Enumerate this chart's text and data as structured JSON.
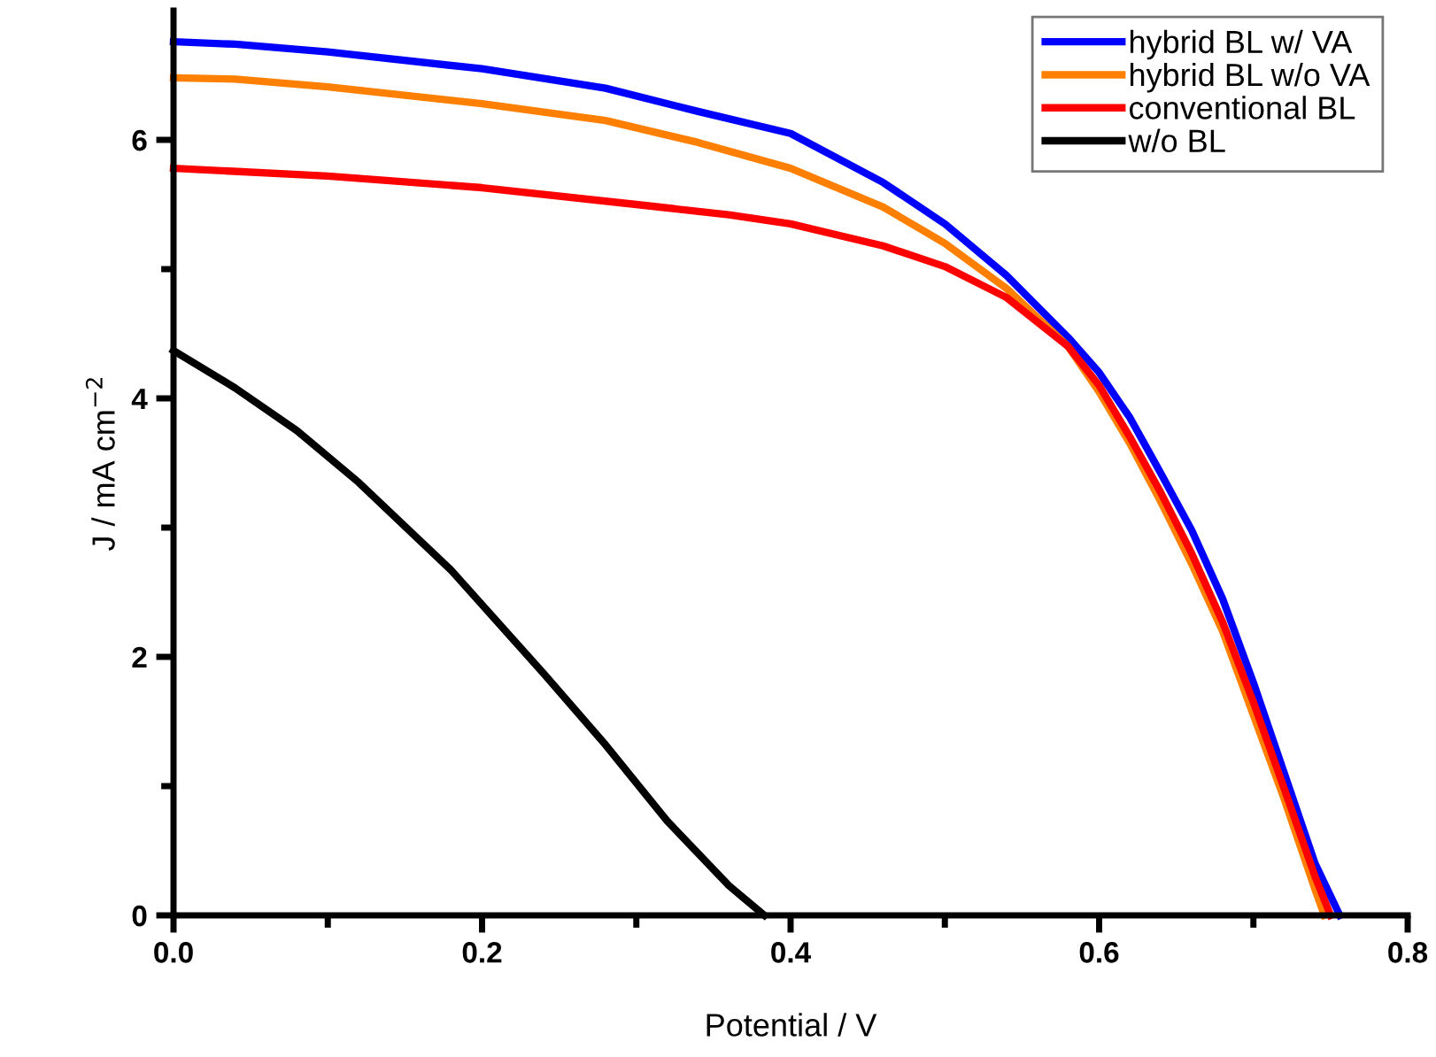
{
  "chart_data": {
    "type": "line",
    "xlabel": "Potential / V",
    "ylabel": "J / mA cm$^{−2}$",
    "xlim": [
      0,
      0.8
    ],
    "ylim": [
      0,
      7
    ],
    "xticks": [
      {
        "value": 0,
        "label": "0.0"
      },
      {
        "value": 0.1,
        "label": null
      },
      0.2,
      {
        "value": 0.3,
        "label": null
      },
      0.4,
      {
        "value": 0.5,
        "label": null
      },
      0.6,
      {
        "value": 0.7,
        "label": null
      },
      0.8
    ],
    "yticks": [
      0,
      {
        "value": 1,
        "label": null
      },
      2,
      {
        "value": 3,
        "label": null
      },
      4,
      {
        "value": 5,
        "label": null
      },
      6
    ],
    "grid": false,
    "legend": "top right",
    "marker": "none",
    "line_style": "solid",
    "series": [
      {
        "name": "hybrid BL w/ VA",
        "color": "#0000ff",
        "x": [
          0,
          0.04,
          0.1,
          0.2,
          0.28,
          0.34,
          0.4,
          0.46,
          0.5,
          0.54,
          0.58,
          0.6,
          0.62,
          0.64,
          0.66,
          0.68,
          0.7,
          0.72,
          0.74,
          0.756
        ],
        "values": [
          6.76,
          6.74,
          6.68,
          6.55,
          6.4,
          6.22,
          6.05,
          5.67,
          5.35,
          4.95,
          4.47,
          4.2,
          3.85,
          3.42,
          2.98,
          2.45,
          1.8,
          1.1,
          0.4,
          0
        ]
      },
      {
        "name": "hybrid BL w/o VA",
        "color": "#ff8000",
        "x": [
          0,
          0.04,
          0.1,
          0.2,
          0.28,
          0.34,
          0.4,
          0.46,
          0.5,
          0.54,
          0.58,
          0.6,
          0.62,
          0.64,
          0.66,
          0.68,
          0.7,
          0.72,
          0.74,
          0.746
        ],
        "values": [
          6.48,
          6.47,
          6.41,
          6.28,
          6.15,
          5.98,
          5.78,
          5.48,
          5.2,
          4.85,
          4.4,
          4.05,
          3.65,
          3.2,
          2.72,
          2.2,
          1.55,
          0.9,
          0.2,
          0
        ]
      },
      {
        "name": "conventional BL",
        "color": "#ff0000",
        "x": [
          0,
          0.1,
          0.2,
          0.3,
          0.36,
          0.4,
          0.46,
          0.5,
          0.54,
          0.58,
          0.6,
          0.62,
          0.64,
          0.66,
          0.68,
          0.7,
          0.72,
          0.74,
          0.75
        ],
        "values": [
          5.78,
          5.72,
          5.63,
          5.5,
          5.42,
          5.35,
          5.18,
          5.02,
          4.78,
          4.4,
          4.1,
          3.7,
          3.27,
          2.8,
          2.27,
          1.65,
          0.98,
          0.3,
          0
        ]
      },
      {
        "name": "w/o BL",
        "color": "#000000",
        "x": [
          0,
          0.04,
          0.08,
          0.12,
          0.18,
          0.24,
          0.28,
          0.32,
          0.36,
          0.383
        ],
        "values": [
          4.37,
          4.08,
          3.75,
          3.35,
          2.67,
          1.87,
          1.32,
          0.73,
          0.23,
          0
        ]
      }
    ]
  }
}
